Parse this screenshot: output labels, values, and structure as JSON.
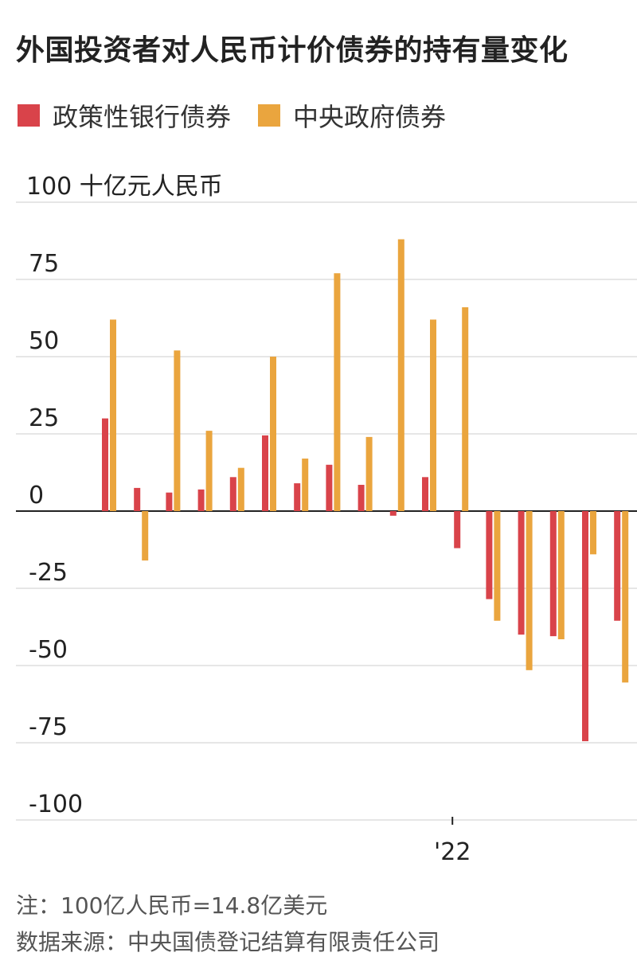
{
  "title": "外国投资者对人民币计价债券的持有量变化",
  "legend": [
    {
      "label": "政策性银行债券",
      "color": "#d9434a"
    },
    {
      "label": "中央政府债券",
      "color": "#eaa53e"
    }
  ],
  "chart_data": {
    "type": "bar",
    "unit_label": "100 十亿元人民币",
    "ylim": [
      -100,
      100
    ],
    "y_ticks": [
      {
        "value": 75,
        "label": "75"
      },
      {
        "value": 50,
        "label": "50"
      },
      {
        "value": 25,
        "label": "25"
      },
      {
        "value": 0,
        "label": "0"
      },
      {
        "value": -25,
        "label": "-25"
      },
      {
        "value": -50,
        "label": "-50"
      },
      {
        "value": -75,
        "label": "-75"
      },
      {
        "value": -100,
        "label": "-100"
      }
    ],
    "x_tick_label": "'22",
    "x_tick_index": 11,
    "grid": true,
    "series": [
      {
        "name": "政策性银行债券",
        "color": "#d9434a",
        "values": [
          30,
          7.5,
          6,
          7,
          11,
          24.5,
          9,
          15,
          8.5,
          -1.5,
          11,
          -12,
          -28.5,
          -40,
          -40.5,
          -74.5,
          -35.5
        ]
      },
      {
        "name": "中央政府债券",
        "color": "#eaa53e",
        "values": [
          62,
          -16,
          52,
          26,
          14,
          50,
          17,
          77,
          24,
          88,
          62,
          66,
          -35.5,
          -51.5,
          -41.5,
          -14,
          -55.5
        ]
      }
    ]
  },
  "footer": {
    "note": "注：100亿人民币=14.8亿美元",
    "source": "数据来源：中央国债登记结算有限责任公司"
  }
}
